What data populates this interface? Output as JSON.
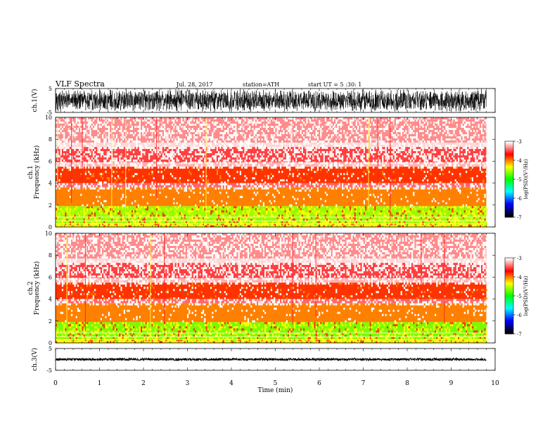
{
  "header": {
    "title": "VLF Spectra",
    "date": "Jul. 28, 2017",
    "station": "station=ATH",
    "start": "start UT = 5 :30: 1"
  },
  "chart_data": [
    {
      "type": "line",
      "name": "ch1-waveform",
      "ylabel": "ch.1(V)",
      "ylim": [
        -5,
        5
      ],
      "yticks": [
        "5",
        "-5"
      ],
      "xlim": [
        0,
        10
      ],
      "trace": {
        "x_end": 9.8,
        "amplitude": 5,
        "color": "#000000"
      }
    },
    {
      "type": "heatmap",
      "name": "ch1-spectrogram",
      "ylabel_top": "ch.1",
      "ylabel": "Frequency (kHz)",
      "ylim": [
        0,
        10
      ],
      "yticks": [
        "0",
        "2",
        "4",
        "6",
        "8",
        "10"
      ],
      "xlim": [
        0,
        10
      ],
      "x_end": 9.8,
      "colorbar": {
        "label": "log(PSD)(V²/Hz)",
        "range": [
          -7,
          -3
        ],
        "ticks": [
          "-3",
          "-4",
          "-5",
          "-6",
          "-7"
        ],
        "colors": [
          "#000000",
          "#0000ff",
          "#00ffff",
          "#00ff00",
          "#ffff00",
          "#ff0000",
          "#ffffff"
        ]
      },
      "bands": [
        {
          "f": [
            0.0,
            0.35
          ],
          "level": -4.3
        },
        {
          "f": [
            0.35,
            1.9
          ],
          "level": -4.6
        },
        {
          "f": [
            1.9,
            3.6
          ],
          "level": -4.0
        },
        {
          "f": [
            3.6,
            4.0
          ],
          "level": -3.4
        },
        {
          "f": [
            4.0,
            5.5
          ],
          "level": -3.8
        },
        {
          "f": [
            5.5,
            5.9
          ],
          "level": -3.2
        },
        {
          "f": [
            5.9,
            7.3
          ],
          "level": -3.5
        },
        {
          "f": [
            7.3,
            7.7
          ],
          "level": -3.1
        },
        {
          "f": [
            7.7,
            10.0
          ],
          "level": -3.3
        }
      ]
    },
    {
      "type": "heatmap",
      "name": "ch2-spectrogram",
      "ylabel_top": "ch.2",
      "ylabel": "Frequency (kHz)",
      "ylim": [
        0,
        10
      ],
      "yticks": [
        "0",
        "2",
        "4",
        "6",
        "8",
        "10"
      ],
      "xlim": [
        0,
        10
      ],
      "x_end": 9.8,
      "colorbar": {
        "label": "log(PSD)(V²/Hz)",
        "range": [
          -7,
          -3
        ],
        "ticks": [
          "-3",
          "-4",
          "-5",
          "-6",
          "-7"
        ],
        "colors": [
          "#000000",
          "#0000ff",
          "#00ffff",
          "#00ff00",
          "#ffff00",
          "#ff0000",
          "#ffffff"
        ]
      },
      "bands": [
        {
          "f": [
            0.0,
            0.35
          ],
          "level": -4.3
        },
        {
          "f": [
            0.35,
            1.9
          ],
          "level": -4.7
        },
        {
          "f": [
            1.9,
            3.6
          ],
          "level": -4.0
        },
        {
          "f": [
            3.6,
            4.0
          ],
          "level": -3.4
        },
        {
          "f": [
            4.0,
            5.5
          ],
          "level": -3.8
        },
        {
          "f": [
            5.5,
            5.9
          ],
          "level": -3.2
        },
        {
          "f": [
            5.9,
            7.3
          ],
          "level": -3.5
        },
        {
          "f": [
            7.3,
            7.7
          ],
          "level": -3.1
        },
        {
          "f": [
            7.7,
            10.0
          ],
          "level": -3.3
        }
      ]
    },
    {
      "type": "line",
      "name": "ch3-waveform",
      "ylabel": "ch.3(V)",
      "ylim": [
        -5,
        5
      ],
      "yticks": [
        "5",
        "-5"
      ],
      "xlim": [
        0,
        10
      ],
      "xlabel": "Time (min)",
      "xticks": [
        "0",
        "1",
        "2",
        "3",
        "4",
        "5",
        "6",
        "7",
        "8",
        "9",
        "10"
      ],
      "trace": {
        "x_end": 9.8,
        "offset": 0,
        "amplitude": 0.6,
        "color": "#000000"
      }
    }
  ]
}
